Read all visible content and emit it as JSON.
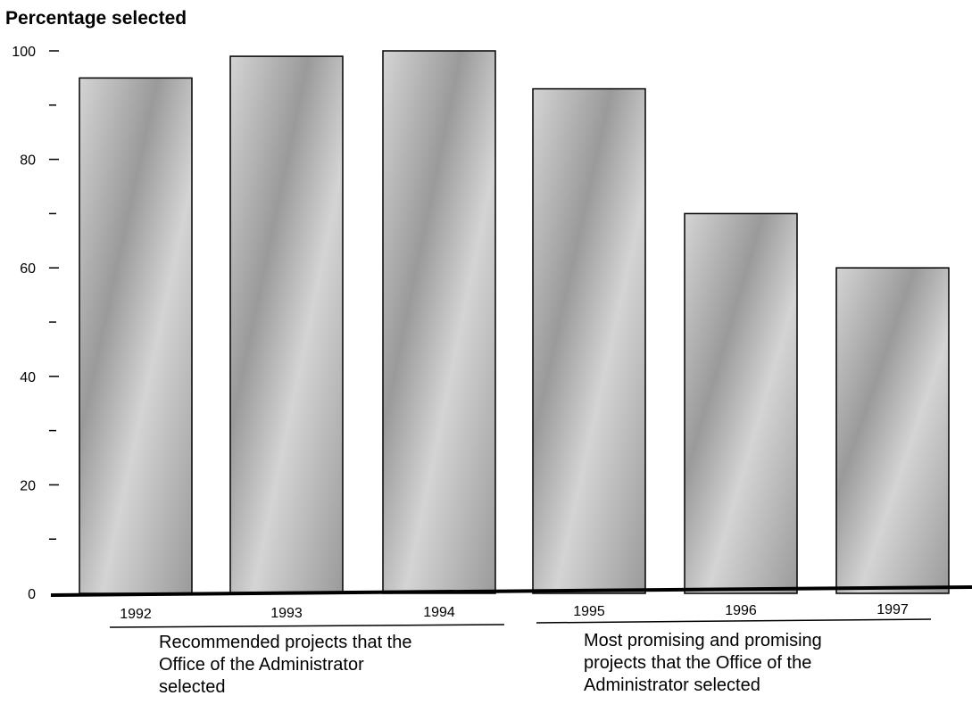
{
  "chart_data": {
    "type": "bar",
    "ylabel": "Percentage selected",
    "xlabel": "",
    "categories": [
      "1992",
      "1993",
      "1994",
      "1995",
      "1996",
      "1997"
    ],
    "values": [
      95,
      99,
      100,
      93,
      70,
      60
    ],
    "ylim": [
      0,
      100
    ],
    "yticks_labeled": [
      0,
      20,
      40,
      60,
      80,
      100
    ],
    "yticks_minor": [
      10,
      30,
      50,
      70,
      90
    ],
    "grid": false,
    "legend": "none",
    "groups": [
      {
        "label_lines": [
          "Recommended projects that the",
          "Office of the Administrator",
          "selected"
        ],
        "categories": [
          "1992",
          "1993",
          "1994"
        ]
      },
      {
        "label_lines": [
          "Most promising and promising",
          "projects that the Office of the",
          "Administrator selected"
        ],
        "categories": [
          "1995",
          "1996",
          "1997"
        ]
      }
    ],
    "colors": {
      "bar_fill_light": "#d4d4d4",
      "bar_fill_dark": "#9a9a9a",
      "bar_stroke": "#000000",
      "axis": "#000000"
    }
  }
}
